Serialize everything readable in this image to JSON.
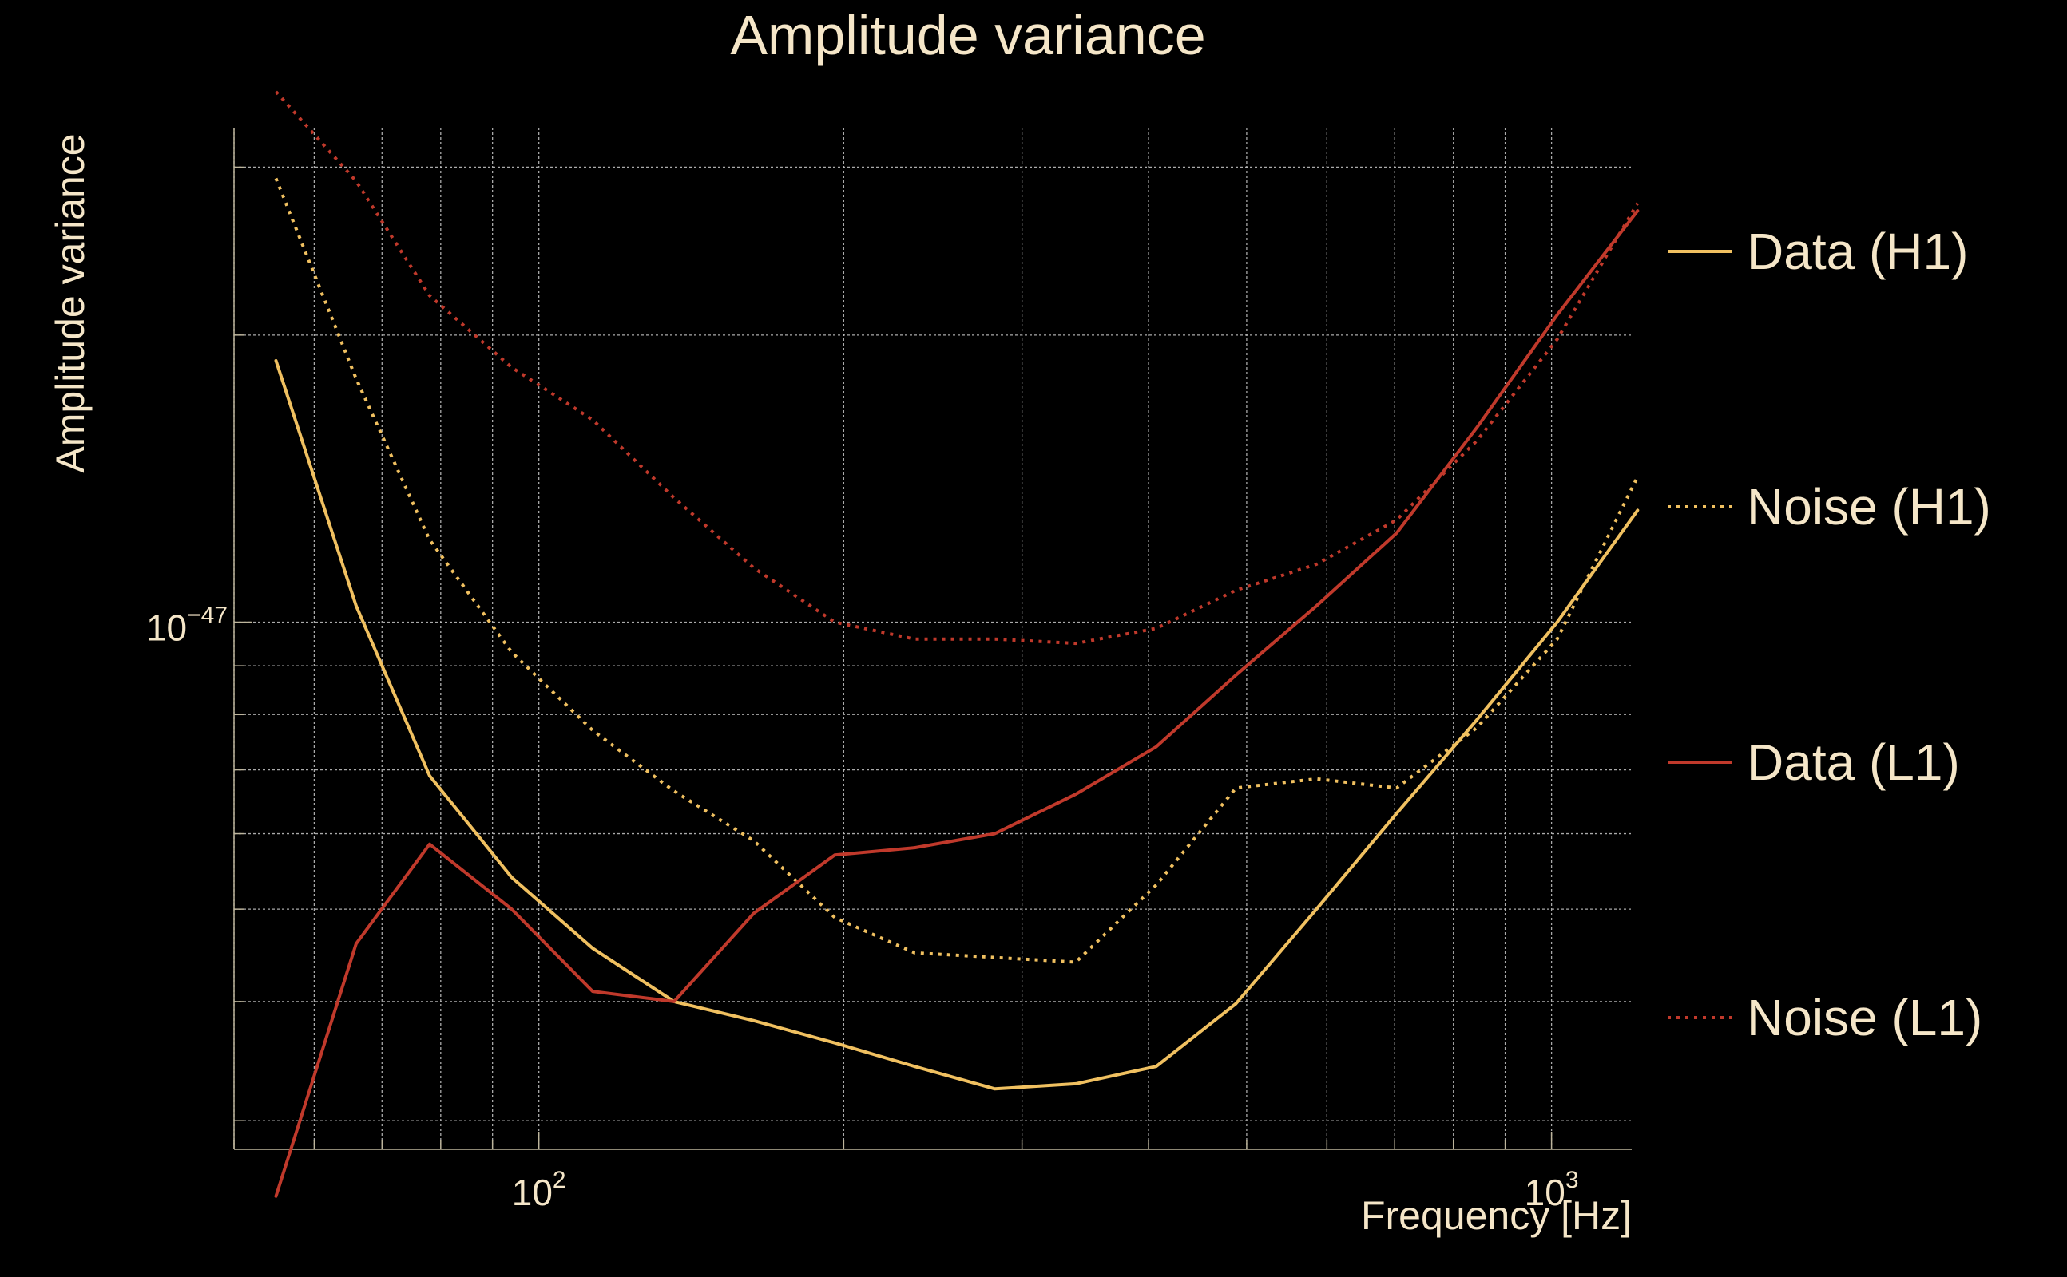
{
  "colors": {
    "background": "#000000",
    "text": "#f5e6c8",
    "h1": "#f0c060",
    "l1": "#c0392b",
    "grid": "#c8c8c8"
  },
  "chart_data": {
    "type": "line",
    "title": "Amplitude variance",
    "xlabel": "Frequency [Hz]",
    "ylabel": "Amplitude variance",
    "xscale": "log",
    "yscale": "log",
    "xlim": [
      50,
      1200
    ],
    "ylim": [
      2.8e-48,
      3.3e-47
    ],
    "grid": true,
    "legend_position": "right",
    "x_ticks": [
      {
        "value": 100,
        "base": "10",
        "exp": "2"
      },
      {
        "value": 1000,
        "base": "10",
        "exp": "3"
      }
    ],
    "y_ticks": [
      {
        "value": 1e-47,
        "base": "10",
        "exp": "−47"
      }
    ],
    "x": [
      55,
      66,
      78,
      94,
      113,
      136,
      163,
      196,
      235,
      282,
      339,
      407,
      488,
      586,
      703,
      844,
      1013,
      1216
    ],
    "series": [
      {
        "name": "Data (H1)",
        "style": "solid",
        "color": "#f0c060",
        "values": [
          1.88e-47,
          1.04e-47,
          6.9e-48,
          5.4e-48,
          4.55e-48,
          4e-48,
          3.82e-48,
          3.62e-48,
          3.42e-48,
          3.24e-48,
          3.28e-48,
          3.42e-48,
          3.98e-48,
          5e-48,
          6.3e-48,
          7.9e-48,
          1e-47,
          1.31e-47
        ]
      },
      {
        "name": "Noise (H1)",
        "style": "dotted",
        "color": "#f0c060",
        "values": [
          2.92e-47,
          1.8e-47,
          1.22e-47,
          9.3e-48,
          7.7e-48,
          6.65e-48,
          5.9e-48,
          4.9e-48,
          4.5e-48,
          4.45e-48,
          4.4e-48,
          5.3e-48,
          6.7e-48,
          6.85e-48,
          6.7e-48,
          7.75e-48,
          9.6e-48,
          1.42e-47
        ]
      },
      {
        "name": "Data (L1)",
        "style": "solid",
        "color": "#c0392b",
        "values": [
          2.5e-48,
          4.6e-48,
          5.85e-48,
          5e-48,
          4.1e-48,
          4e-48,
          4.95e-48,
          5.7e-48,
          5.8e-48,
          6e-48,
          6.6e-48,
          7.4e-48,
          8.8e-48,
          1.04e-47,
          1.24e-47,
          1.6e-47,
          2.1e-47,
          2.7e-47
        ]
      },
      {
        "name": "Noise (L1)",
        "style": "dotted",
        "color": "#c0392b",
        "values": [
          3.6e-47,
          2.9e-47,
          2.2e-47,
          1.85e-47,
          1.63e-47,
          1.35e-47,
          1.14e-47,
          1e-47,
          9.6e-48,
          9.6e-48,
          9.5e-48,
          9.85e-48,
          1.08e-47,
          1.15e-47,
          1.28e-47,
          1.55e-47,
          1.98e-47,
          2.75e-47
        ]
      }
    ]
  }
}
